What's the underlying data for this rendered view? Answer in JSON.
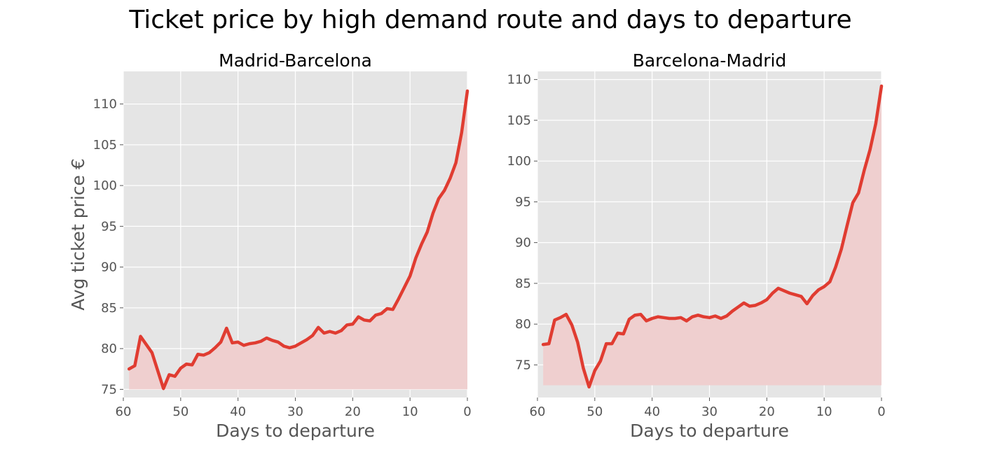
{
  "figure": {
    "title": "Ticket price by high demand route and days to departure"
  },
  "style": {
    "line_color": "#e03c31",
    "fill_color": "#efcfcf",
    "plot_bg": "#e5e5e5",
    "grid_color": "#ffffff"
  },
  "chart_data": [
    {
      "type": "area",
      "title": "Madrid-Barcelona",
      "xlabel": "Days to departure",
      "ylabel": "Avg ticket price €",
      "xlim": [
        60,
        0
      ],
      "ylim": [
        74,
        114
      ],
      "xticks": [
        60,
        50,
        40,
        30,
        20,
        10,
        0
      ],
      "yticks": [
        75,
        80,
        85,
        90,
        95,
        100,
        105,
        110
      ],
      "fill_base": 75,
      "grid": true,
      "x": [
        59,
        58,
        57,
        56,
        55,
        54,
        53,
        52,
        51,
        50,
        49,
        48,
        47,
        46,
        45,
        44,
        43,
        42,
        41,
        40,
        39,
        38,
        37,
        36,
        35,
        34,
        33,
        32,
        31,
        30,
        29,
        28,
        27,
        26,
        25,
        24,
        23,
        22,
        21,
        20,
        19,
        18,
        17,
        16,
        15,
        14,
        13,
        12,
        11,
        10,
        9,
        8,
        7,
        6,
        5,
        4,
        3,
        2,
        1,
        0
      ],
      "y": [
        77.5,
        77.9,
        81.5,
        80.5,
        79.5,
        77.3,
        75.1,
        76.8,
        76.6,
        77.6,
        78.1,
        78.0,
        79.3,
        79.2,
        79.5,
        80.1,
        80.8,
        82.5,
        80.7,
        80.8,
        80.4,
        80.6,
        80.7,
        80.9,
        81.3,
        81.0,
        80.8,
        80.3,
        80.1,
        80.3,
        80.7,
        81.1,
        81.6,
        82.6,
        81.9,
        82.1,
        81.9,
        82.2,
        82.9,
        83.0,
        83.9,
        83.5,
        83.4,
        84.1,
        84.3,
        84.9,
        84.8,
        86.1,
        87.5,
        88.9,
        91.1,
        92.8,
        94.3,
        96.6,
        98.4,
        99.4,
        100.9,
        102.8,
        106.5,
        111.6
      ]
    },
    {
      "type": "area",
      "title": "Barcelona-Madrid",
      "xlabel": "Days to departure",
      "ylabel": "",
      "xlim": [
        60,
        0
      ],
      "ylim": [
        71,
        111
      ],
      "xticks": [
        60,
        50,
        40,
        30,
        20,
        10,
        0
      ],
      "yticks": [
        75,
        80,
        85,
        90,
        95,
        100,
        105,
        110
      ],
      "fill_base": 72.5,
      "grid": true,
      "x": [
        59,
        58,
        57,
        56,
        55,
        54,
        53,
        52,
        51,
        50,
        49,
        48,
        47,
        46,
        45,
        44,
        43,
        42,
        41,
        40,
        39,
        38,
        37,
        36,
        35,
        34,
        33,
        32,
        31,
        30,
        29,
        28,
        27,
        26,
        25,
        24,
        23,
        22,
        21,
        20,
        19,
        18,
        17,
        16,
        15,
        14,
        13,
        12,
        11,
        10,
        9,
        8,
        7,
        6,
        5,
        4,
        3,
        2,
        1,
        0
      ],
      "y": [
        77.5,
        77.6,
        80.5,
        80.8,
        81.2,
        79.9,
        77.8,
        74.6,
        72.3,
        74.3,
        75.5,
        77.6,
        77.6,
        78.9,
        78.8,
        80.6,
        81.1,
        81.2,
        80.4,
        80.7,
        80.9,
        80.8,
        80.7,
        80.7,
        80.8,
        80.4,
        80.9,
        81.1,
        80.9,
        80.8,
        81.0,
        80.7,
        81.0,
        81.6,
        82.1,
        82.6,
        82.2,
        82.3,
        82.6,
        83.0,
        83.8,
        84.4,
        84.1,
        83.8,
        83.6,
        83.4,
        82.5,
        83.5,
        84.2,
        84.6,
        85.2,
        87.0,
        89.2,
        92.1,
        94.9,
        96.1,
        98.9,
        101.4,
        104.6,
        109.2
      ]
    }
  ]
}
